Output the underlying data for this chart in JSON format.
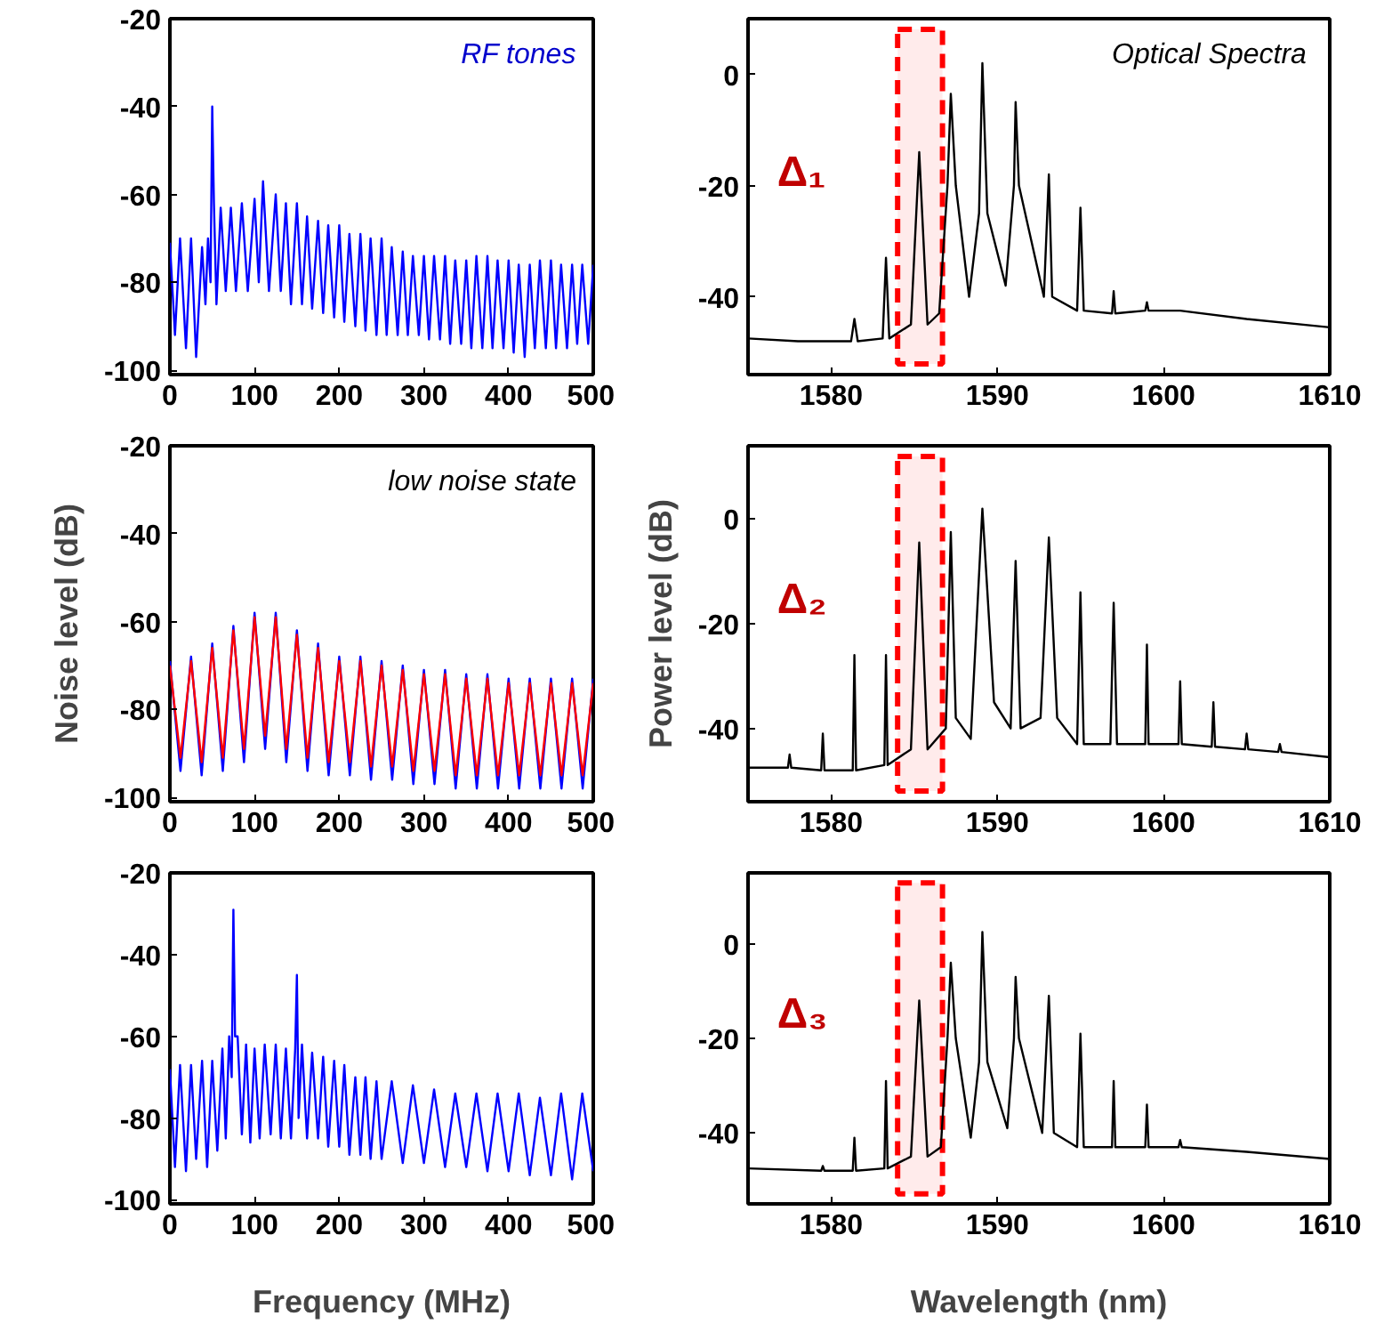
{
  "chart_data": [
    {
      "type": "line",
      "annotations": [
        "RF tones"
      ],
      "xlim": [
        0,
        500
      ],
      "xticks": [
        0,
        100,
        200,
        300,
        400,
        500
      ],
      "ylim": [
        -101,
        -20
      ],
      "yticks": [
        -100,
        -80,
        -60,
        -40,
        -20
      ],
      "series": [
        {
          "color": "#0000ff",
          "x": [
            0,
            6,
            12,
            19,
            25,
            31,
            38,
            42,
            45,
            48,
            50,
            52,
            55,
            60,
            66,
            72,
            78,
            85,
            92,
            100,
            105,
            110,
            117,
            125,
            131,
            137,
            143,
            150,
            156,
            162,
            168,
            175,
            181,
            187,
            194,
            200,
            206,
            212,
            219,
            225,
            231,
            237,
            244,
            250,
            256,
            262,
            269,
            275,
            281,
            287,
            294,
            300,
            306,
            312,
            319,
            325,
            331,
            337,
            344,
            350,
            356,
            362,
            369,
            375,
            381,
            387,
            394,
            400,
            406,
            412,
            419,
            425,
            431,
            437,
            444,
            450,
            456,
            462,
            469,
            475,
            481,
            487,
            494,
            500
          ],
          "values": [
            -71,
            -92,
            -70,
            -95,
            -70,
            -97,
            -72,
            -85,
            -70,
            -80,
            -40,
            -62,
            -85,
            -63,
            -82,
            -63,
            -82,
            -62,
            -82,
            -61,
            -80,
            -57,
            -82,
            -60,
            -82,
            -62,
            -85,
            -62,
            -85,
            -65,
            -86,
            -66,
            -87,
            -67,
            -88,
            -67,
            -89,
            -69,
            -90,
            -69,
            -91,
            -70,
            -92,
            -70,
            -92,
            -72,
            -92,
            -73,
            -92,
            -74,
            -92,
            -74,
            -93,
            -74,
            -93,
            -74,
            -94,
            -75,
            -94,
            -75,
            -95,
            -74,
            -95,
            -74,
            -95,
            -75,
            -95,
            -75,
            -96,
            -76,
            -97,
            -76,
            -95,
            -75,
            -95,
            -75,
            -95,
            -76,
            -95,
            -76,
            -94,
            -76,
            -94,
            -76
          ]
        }
      ]
    },
    {
      "type": "line",
      "annotations": [
        "Optical Spectra"
      ],
      "xlim": [
        1575,
        1610
      ],
      "xticks": [
        1580,
        1590,
        1600,
        1610
      ],
      "ylim": [
        -54,
        10
      ],
      "yticks": [
        -40,
        -20,
        0
      ],
      "bands": [
        {
          "axis": "x",
          "from": 1584,
          "to": 1586.7,
          "label": "Δ₁",
          "color": "#ff0000"
        }
      ],
      "series": [
        {
          "color": "#000000",
          "x": [
            1575,
            1578,
            1581.2,
            1581.4,
            1581.6,
            1583.1,
            1583.3,
            1583.5,
            1584.8,
            1585.3,
            1585.8,
            1586.5,
            1587.0,
            1587.2,
            1587.5,
            1588.3,
            1588.9,
            1589.1,
            1589.4,
            1590.5,
            1591.0,
            1591.1,
            1591.3,
            1592.8,
            1593.1,
            1593.3,
            1594.8,
            1595.0,
            1595.2,
            1596.9,
            1597.0,
            1597.1,
            1598.9,
            1599.0,
            1599.1,
            1601,
            1605,
            1610
          ],
          "values": [
            -47.5,
            -48,
            -48,
            -44,
            -48,
            -47.5,
            -33,
            -47.5,
            -45,
            -14,
            -45,
            -43,
            -20,
            -3.5,
            -20,
            -40,
            -25,
            2,
            -25,
            -38,
            -20,
            -5,
            -20,
            -40,
            -18,
            -40,
            -42.5,
            -24,
            -42.5,
            -43,
            -39,
            -43,
            -42.5,
            -41,
            -42.5,
            -42.5,
            -44,
            -45.5
          ]
        }
      ]
    },
    {
      "type": "line",
      "ylabel": "Noise level (dB)",
      "annotations": [
        "low noise state"
      ],
      "xlim": [
        0,
        500
      ],
      "xticks": [
        0,
        100,
        200,
        300,
        400,
        500
      ],
      "ylim": [
        -101,
        -20
      ],
      "yticks": [
        -100,
        -80,
        -60,
        -40,
        -20
      ],
      "series": [
        {
          "color": "#0000ff",
          "x": [
            0,
            12.5,
            25,
            37.5,
            50,
            62.5,
            75,
            87.5,
            100,
            112.5,
            125,
            137.5,
            150,
            162.5,
            175,
            187.5,
            200,
            212.5,
            225,
            237.5,
            250,
            262.5,
            275,
            287.5,
            300,
            312.5,
            325,
            337.5,
            350,
            362.5,
            375,
            387.5,
            400,
            412.5,
            425,
            437.5,
            450,
            462.5,
            475,
            487.5,
            500
          ],
          "values": [
            -69,
            -94,
            -68,
            -95,
            -65,
            -94,
            -61,
            -92,
            -58,
            -89,
            -58,
            -92,
            -62,
            -94,
            -65,
            -95,
            -68,
            -95,
            -68,
            -96,
            -69,
            -96,
            -70,
            -97,
            -71,
            -97,
            -71,
            -98,
            -72,
            -98,
            -72,
            -98,
            -73,
            -98,
            -73,
            -98,
            -73,
            -98,
            -73,
            -98,
            -73
          ]
        },
        {
          "color": "#ff0000",
          "x": [
            0,
            12.5,
            25,
            37.5,
            50,
            62.5,
            75,
            87.5,
            100,
            112.5,
            125,
            137.5,
            150,
            162.5,
            175,
            187.5,
            200,
            212.5,
            225,
            237.5,
            250,
            262.5,
            275,
            287.5,
            300,
            312.5,
            325,
            337.5,
            350,
            362.5,
            375,
            387.5,
            400,
            412.5,
            425,
            437.5,
            450,
            462.5,
            475,
            487.5,
            500
          ],
          "values": [
            -70,
            -91,
            -69,
            -92,
            -66,
            -91,
            -62,
            -89,
            -59,
            -86,
            -59,
            -89,
            -63,
            -91,
            -66,
            -92,
            -69,
            -92,
            -69,
            -93,
            -70,
            -93,
            -71,
            -94,
            -72,
            -94,
            -72,
            -95,
            -73,
            -95,
            -73,
            -95,
            -74,
            -95,
            -74,
            -95,
            -74,
            -95,
            -74,
            -95,
            -74
          ]
        }
      ]
    },
    {
      "type": "line",
      "ylabel": "Power level (dB)",
      "xlim": [
        1575,
        1610
      ],
      "xticks": [
        1580,
        1590,
        1600,
        1610
      ],
      "ylim": [
        -54,
        14
      ],
      "yticks": [
        -40,
        -20,
        0
      ],
      "bands": [
        {
          "axis": "x",
          "from": 1584,
          "to": 1586.7,
          "label": "Δ₂",
          "color": "#ff0000"
        }
      ],
      "series": [
        {
          "color": "#000000",
          "x": [
            1575,
            1577.4,
            1577.5,
            1577.6,
            1579.4,
            1579.5,
            1579.6,
            1581.3,
            1581.4,
            1581.5,
            1583.2,
            1583.3,
            1583.4,
            1584.8,
            1585.3,
            1585.8,
            1586.9,
            1587.2,
            1587.5,
            1588.4,
            1589.1,
            1589.8,
            1590.8,
            1591.1,
            1591.4,
            1592.6,
            1593.1,
            1593.6,
            1594.8,
            1595.0,
            1595.2,
            1596.8,
            1597.0,
            1597.2,
            1598.9,
            1599.0,
            1599.1,
            1600.9,
            1601.0,
            1601.1,
            1602.9,
            1603,
            1603.1,
            1604.9,
            1605,
            1605.1,
            1606.9,
            1607,
            1607.1,
            1610
          ],
          "values": [
            -47.5,
            -47.5,
            -45,
            -47.5,
            -48,
            -41,
            -48,
            -48,
            -26,
            -48,
            -47,
            -26,
            -47,
            -44,
            -4.5,
            -44,
            -40,
            -2.5,
            -38,
            -42,
            2,
            -35,
            -40,
            -8,
            -40,
            -38,
            -3.5,
            -38,
            -43,
            -14,
            -43,
            -43,
            -16,
            -43,
            -43,
            -24,
            -43,
            -43,
            -31,
            -43,
            -43.5,
            -35,
            -43.5,
            -44,
            -41,
            -44,
            -44.5,
            -43,
            -44.5,
            -45.5
          ]
        }
      ]
    },
    {
      "type": "line",
      "xlabel": "Frequency (MHz)",
      "xlim": [
        0,
        500
      ],
      "xticks": [
        0,
        100,
        200,
        300,
        400,
        500
      ],
      "ylim": [
        -101,
        -20
      ],
      "yticks": [
        -100,
        -80,
        -60,
        -40,
        -20
      ],
      "series": [
        {
          "color": "#0000ff",
          "x": [
            0,
            6,
            12,
            19,
            25,
            31,
            38,
            44,
            50,
            56,
            62,
            66,
            70,
            73,
            75,
            77,
            80,
            85,
            90,
            95,
            100,
            106,
            112,
            119,
            125,
            131,
            137,
            143,
            148,
            150,
            152,
            156,
            162,
            168,
            175,
            181,
            187,
            194,
            200,
            206,
            212,
            219,
            225,
            231,
            237,
            244,
            250,
            262,
            275,
            287,
            300,
            312,
            325,
            337,
            350,
            362,
            375,
            387,
            400,
            412,
            425,
            437,
            450,
            462,
            475,
            487,
            500
          ],
          "values": [
            -68,
            -92,
            -67,
            -93,
            -67,
            -90,
            -66,
            -92,
            -66,
            -88,
            -63,
            -85,
            -60,
            -70,
            -29,
            -60,
            -60,
            -84,
            -62,
            -86,
            -63,
            -85,
            -62,
            -84,
            -62,
            -85,
            -63,
            -85,
            -63,
            -45,
            -80,
            -62,
            -85,
            -64,
            -85,
            -65,
            -87,
            -66,
            -87,
            -67,
            -89,
            -70,
            -89,
            -70,
            -90,
            -71,
            -90,
            -71,
            -91,
            -72,
            -91,
            -73,
            -92,
            -74,
            -92,
            -74,
            -93,
            -74,
            -93,
            -74,
            -94,
            -75,
            -94,
            -74,
            -95,
            -74,
            -93
          ]
        }
      ]
    },
    {
      "type": "line",
      "xlabel": "Wavelength (nm)",
      "xlim": [
        1575,
        1610
      ],
      "xticks": [
        1580,
        1590,
        1600,
        1610
      ],
      "ylim": [
        -55,
        15
      ],
      "yticks": [
        -40,
        -20,
        0
      ],
      "bands": [
        {
          "axis": "x",
          "from": 1584,
          "to": 1586.7,
          "label": "Δ₃",
          "color": "#ff0000"
        }
      ],
      "series": [
        {
          "color": "#000000",
          "x": [
            1575,
            1579.4,
            1579.5,
            1579.6,
            1581.3,
            1581.4,
            1581.5,
            1583.2,
            1583.3,
            1583.4,
            1584.8,
            1585.3,
            1585.8,
            1586.6,
            1587.0,
            1587.2,
            1587.5,
            1588.4,
            1588.9,
            1589.1,
            1589.4,
            1590.6,
            1591.0,
            1591.1,
            1591.3,
            1592.7,
            1593.1,
            1593.4,
            1594.8,
            1595.0,
            1595.2,
            1596.9,
            1597.0,
            1597.1,
            1598.9,
            1599.0,
            1599.1,
            1600.9,
            1601.0,
            1601.1,
            1605,
            1610
          ],
          "values": [
            -47.5,
            -48,
            -47,
            -48,
            -48,
            -41,
            -48,
            -47.5,
            -29,
            -47.5,
            -45,
            -12,
            -45,
            -43,
            -20,
            -4,
            -20,
            -41,
            -25,
            2.5,
            -25,
            -39,
            -20,
            -7,
            -20,
            -40,
            -11,
            -40,
            -43,
            -19,
            -43,
            -43,
            -29,
            -43,
            -43,
            -34,
            -43,
            -43,
            -41.5,
            -43,
            -44,
            -45.5
          ]
        }
      ]
    }
  ]
}
